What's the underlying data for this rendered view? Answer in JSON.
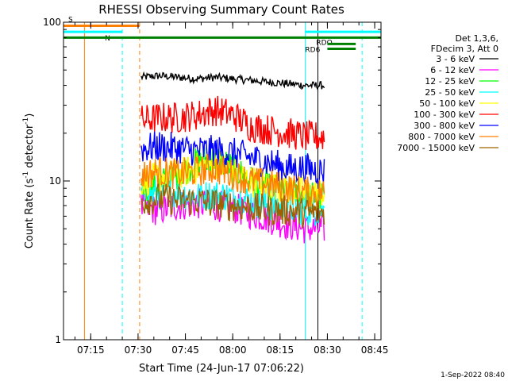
{
  "chart_data": {
    "type": "line",
    "title": "RHESSI Observing Summary Count Rates",
    "xlabel": "Start Time (24-Jun-17 07:06:22)",
    "ylabel_main": "Count Rate (s",
    "ylabel_sup": "-1",
    "ylabel_mid": " detector",
    "ylabel_sup2": "-1",
    "ylabel_end": ")",
    "ylog": true,
    "ylim": [
      1,
      100
    ],
    "xlim": [
      "07:06:22",
      "08:47:00"
    ],
    "x_tick_labels": [
      "07:15",
      "07:30",
      "07:45",
      "08:00",
      "08:15",
      "08:30",
      "08:45"
    ],
    "y_tick_labels": [
      "1",
      "10",
      "100"
    ],
    "legend_header": [
      "Det 1,3,6,",
      "FDecim 3, Att 0"
    ],
    "footer_date": "1-Sep-2022 08:40",
    "data_start": "07:31:00",
    "data_end": "08:29:00",
    "series": [
      {
        "name": "3 - 6 keV",
        "color": "#000000",
        "values": [
          45,
          46,
          45,
          44,
          45,
          44,
          43,
          42,
          41,
          40,
          40
        ]
      },
      {
        "name": "6 - 12 keV",
        "color": "#ff00ff",
        "values": [
          6.8,
          6.5,
          7.0,
          7.2,
          7.0,
          6.8,
          6.2,
          5.8,
          5.3,
          5.0,
          5.0
        ]
      },
      {
        "name": "12 - 25 keV",
        "color": "#00ff00",
        "values": [
          9.0,
          9.5,
          11,
          13,
          14,
          12,
          10,
          9.0,
          8.5,
          8.0,
          8.0
        ]
      },
      {
        "name": "25 - 50 keV",
        "color": "#00ffff",
        "values": [
          8.0,
          8.3,
          8.5,
          8.0,
          8.2,
          8.0,
          7.5,
          7.0,
          6.8,
          6.5,
          6.5
        ]
      },
      {
        "name": "50 - 100 keV",
        "color": "#ffff00",
        "values": [
          10,
          10.5,
          11,
          12,
          13,
          11.5,
          10,
          9.5,
          9.0,
          8.5,
          8.5
        ]
      },
      {
        "name": "100 - 300 keV",
        "color": "#ff0000",
        "values": [
          24,
          25,
          25,
          26,
          28,
          26,
          22,
          21,
          20,
          19,
          19
        ]
      },
      {
        "name": "300 - 800 keV",
        "color": "#0000ff",
        "values": [
          16,
          16.5,
          16,
          15.5,
          15.5,
          15,
          14,
          13,
          12,
          12,
          11.5
        ]
      },
      {
        "name": "800 - 7000 keV",
        "color": "#ff8000",
        "values": [
          11,
          11.5,
          11,
          11.5,
          12,
          11,
          10,
          9.5,
          9.0,
          8.5,
          8.5
        ]
      },
      {
        "name": "7000 - 15000 keV",
        "color": "#a06000",
        "values": [
          7.5,
          7.8,
          7.5,
          7.5,
          7.2,
          7.0,
          6.8,
          6.5,
          6.5,
          6.3,
          6.3
        ]
      }
    ],
    "vertical_markers": [
      {
        "time": "07:13:00",
        "color": "#ff8000",
        "style": "solid"
      },
      {
        "time": "07:25:00",
        "color": "#00ffff",
        "style": "dashed"
      },
      {
        "time": "07:30:30",
        "color": "#ff8000",
        "style": "dashed"
      },
      {
        "time": "08:23:00",
        "color": "#00ffff",
        "style": "solid"
      },
      {
        "time": "08:27:00",
        "color": "#000000",
        "style": "solid"
      },
      {
        "time": "08:41:00",
        "color": "#00ffff",
        "style": "dashed"
      }
    ],
    "bars": [
      {
        "label": "S",
        "color": "#ff8000",
        "start": "07:06:22",
        "end": "07:30:30",
        "y": 95
      },
      {
        "label": "N",
        "color": "#00ffff",
        "start": "07:06:22",
        "end": "07:25:00",
        "y": 87
      },
      {
        "label": "",
        "color": "#00ffff",
        "start": "08:23:00",
        "end": "08:47:00",
        "y": 87
      },
      {
        "label": "",
        "color": "#008000",
        "start": "07:06:22",
        "end": "08:47:00",
        "y": 80
      },
      {
        "label": "RDO",
        "color": "#008000",
        "start": "08:30:00",
        "end": "08:39:00",
        "y": 68
      },
      {
        "label": "RD6",
        "color": "#008000",
        "start": "08:30:00",
        "end": "08:39:00",
        "y": 73
      }
    ]
  }
}
